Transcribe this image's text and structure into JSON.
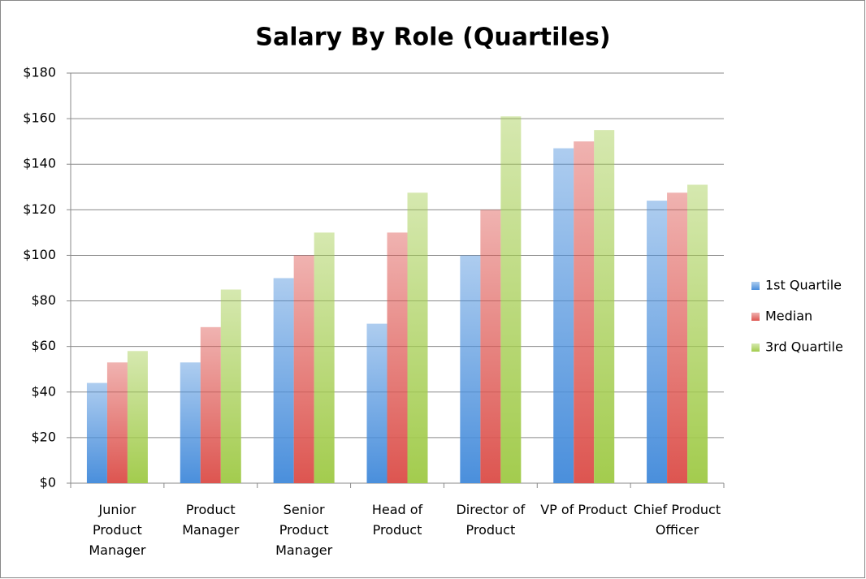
{
  "chart_data": {
    "type": "bar",
    "title": "Salary By Role (Quartiles)",
    "categories": [
      "Junior\nProduct\nManager",
      "Product\nManager",
      "Senior\nProduct\nManager",
      "Head of\nProduct",
      "Director of\nProduct",
      "VP of Product",
      "Chief Product\nOfficer"
    ],
    "series": [
      {
        "name": "1st Quartile",
        "color": "#4a8fdc",
        "values": [
          44,
          53,
          90,
          70,
          100,
          147,
          124
        ]
      },
      {
        "name": "Median",
        "color": "#dd5550",
        "values": [
          53,
          68.5,
          100,
          110,
          120,
          150,
          127.5
        ]
      },
      {
        "name": "3rd Quartile",
        "color": "#a3cc4e",
        "values": [
          58,
          85,
          110,
          127.5,
          161,
          155,
          131
        ]
      }
    ],
    "ylim": [
      0,
      180
    ],
    "yticks": [
      {
        "value": 0,
        "label": "$0"
      },
      {
        "value": 20,
        "label": "$20"
      },
      {
        "value": 40,
        "label": "$40"
      },
      {
        "value": 60,
        "label": "$60"
      },
      {
        "value": 80,
        "label": "$80"
      },
      {
        "value": 100,
        "label": "$100"
      },
      {
        "value": 120,
        "label": "$120"
      },
      {
        "value": 140,
        "label": "$140"
      },
      {
        "value": 160,
        "label": "$160"
      },
      {
        "value": 180,
        "label": "$180"
      }
    ],
    "grid": true,
    "legend": "right"
  }
}
